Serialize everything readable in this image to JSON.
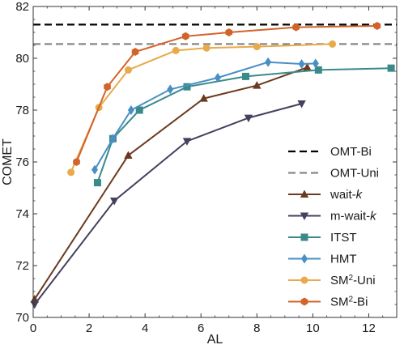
{
  "chart_data": {
    "type": "line",
    "title": "",
    "xlabel": "AL",
    "ylabel": "COMET",
    "xlim": [
      0,
      13
    ],
    "ylim": [
      70,
      82
    ],
    "x_ticks": [
      "0",
      "2",
      "4",
      "6",
      "8",
      "10",
      "12"
    ],
    "y_ticks": [
      "70",
      "72",
      "74",
      "76",
      "78",
      "80",
      "82"
    ],
    "grid": false,
    "legend_position": "lower-right",
    "reference_lines": [
      {
        "name": "OMT-Bi",
        "value": 81.3,
        "color": "#000000",
        "style": "dashed"
      },
      {
        "name": "OMT-Uni",
        "value": 80.55,
        "color": "#888888",
        "style": "dashed"
      }
    ],
    "series": [
      {
        "name": "wait-",
        "name_italic": "k",
        "marker": "triangle-up",
        "color": "#6b3a1f",
        "x": [
          0.05,
          3.4,
          6.1,
          8.0,
          9.8
        ],
        "y": [
          70.7,
          76.25,
          78.45,
          78.95,
          79.65
        ]
      },
      {
        "name": "m-wait-",
        "name_italic": "k",
        "marker": "triangle-down",
        "color": "#45405f",
        "x": [
          0.05,
          2.9,
          5.5,
          7.7,
          9.6
        ],
        "y": [
          70.5,
          74.5,
          76.8,
          77.7,
          78.25
        ]
      },
      {
        "name": "ITST",
        "marker": "square",
        "color": "#3a8a8a",
        "x": [
          2.3,
          2.85,
          3.8,
          5.5,
          7.6,
          10.2,
          12.8
        ],
        "y": [
          75.2,
          76.9,
          78.0,
          78.9,
          79.3,
          79.55,
          79.62
        ]
      },
      {
        "name": "HMT",
        "marker": "diamond",
        "color": "#4a8fc4",
        "x": [
          2.2,
          2.85,
          3.5,
          4.9,
          6.6,
          8.4,
          9.6,
          10.1
        ],
        "y": [
          75.7,
          76.9,
          78.0,
          78.8,
          79.25,
          79.85,
          79.78,
          79.8
        ]
      },
      {
        "name": "SM",
        "name_sup": "2",
        "name_suffix": "-Uni",
        "marker": "circle",
        "color": "#e8aa4a",
        "x": [
          1.35,
          2.35,
          3.4,
          5.1,
          6.2,
          8.0,
          10.7
        ],
        "y": [
          75.6,
          78.1,
          79.55,
          80.3,
          80.4,
          80.45,
          80.55
        ]
      },
      {
        "name": "SM",
        "name_sup": "2",
        "name_suffix": "-Bi",
        "marker": "hexagon",
        "color": "#d2632a",
        "x": [
          1.55,
          2.65,
          3.65,
          5.45,
          7.0,
          9.4,
          12.3
        ],
        "y": [
          76.0,
          78.9,
          80.25,
          80.85,
          81.0,
          81.2,
          81.25
        ]
      }
    ]
  }
}
